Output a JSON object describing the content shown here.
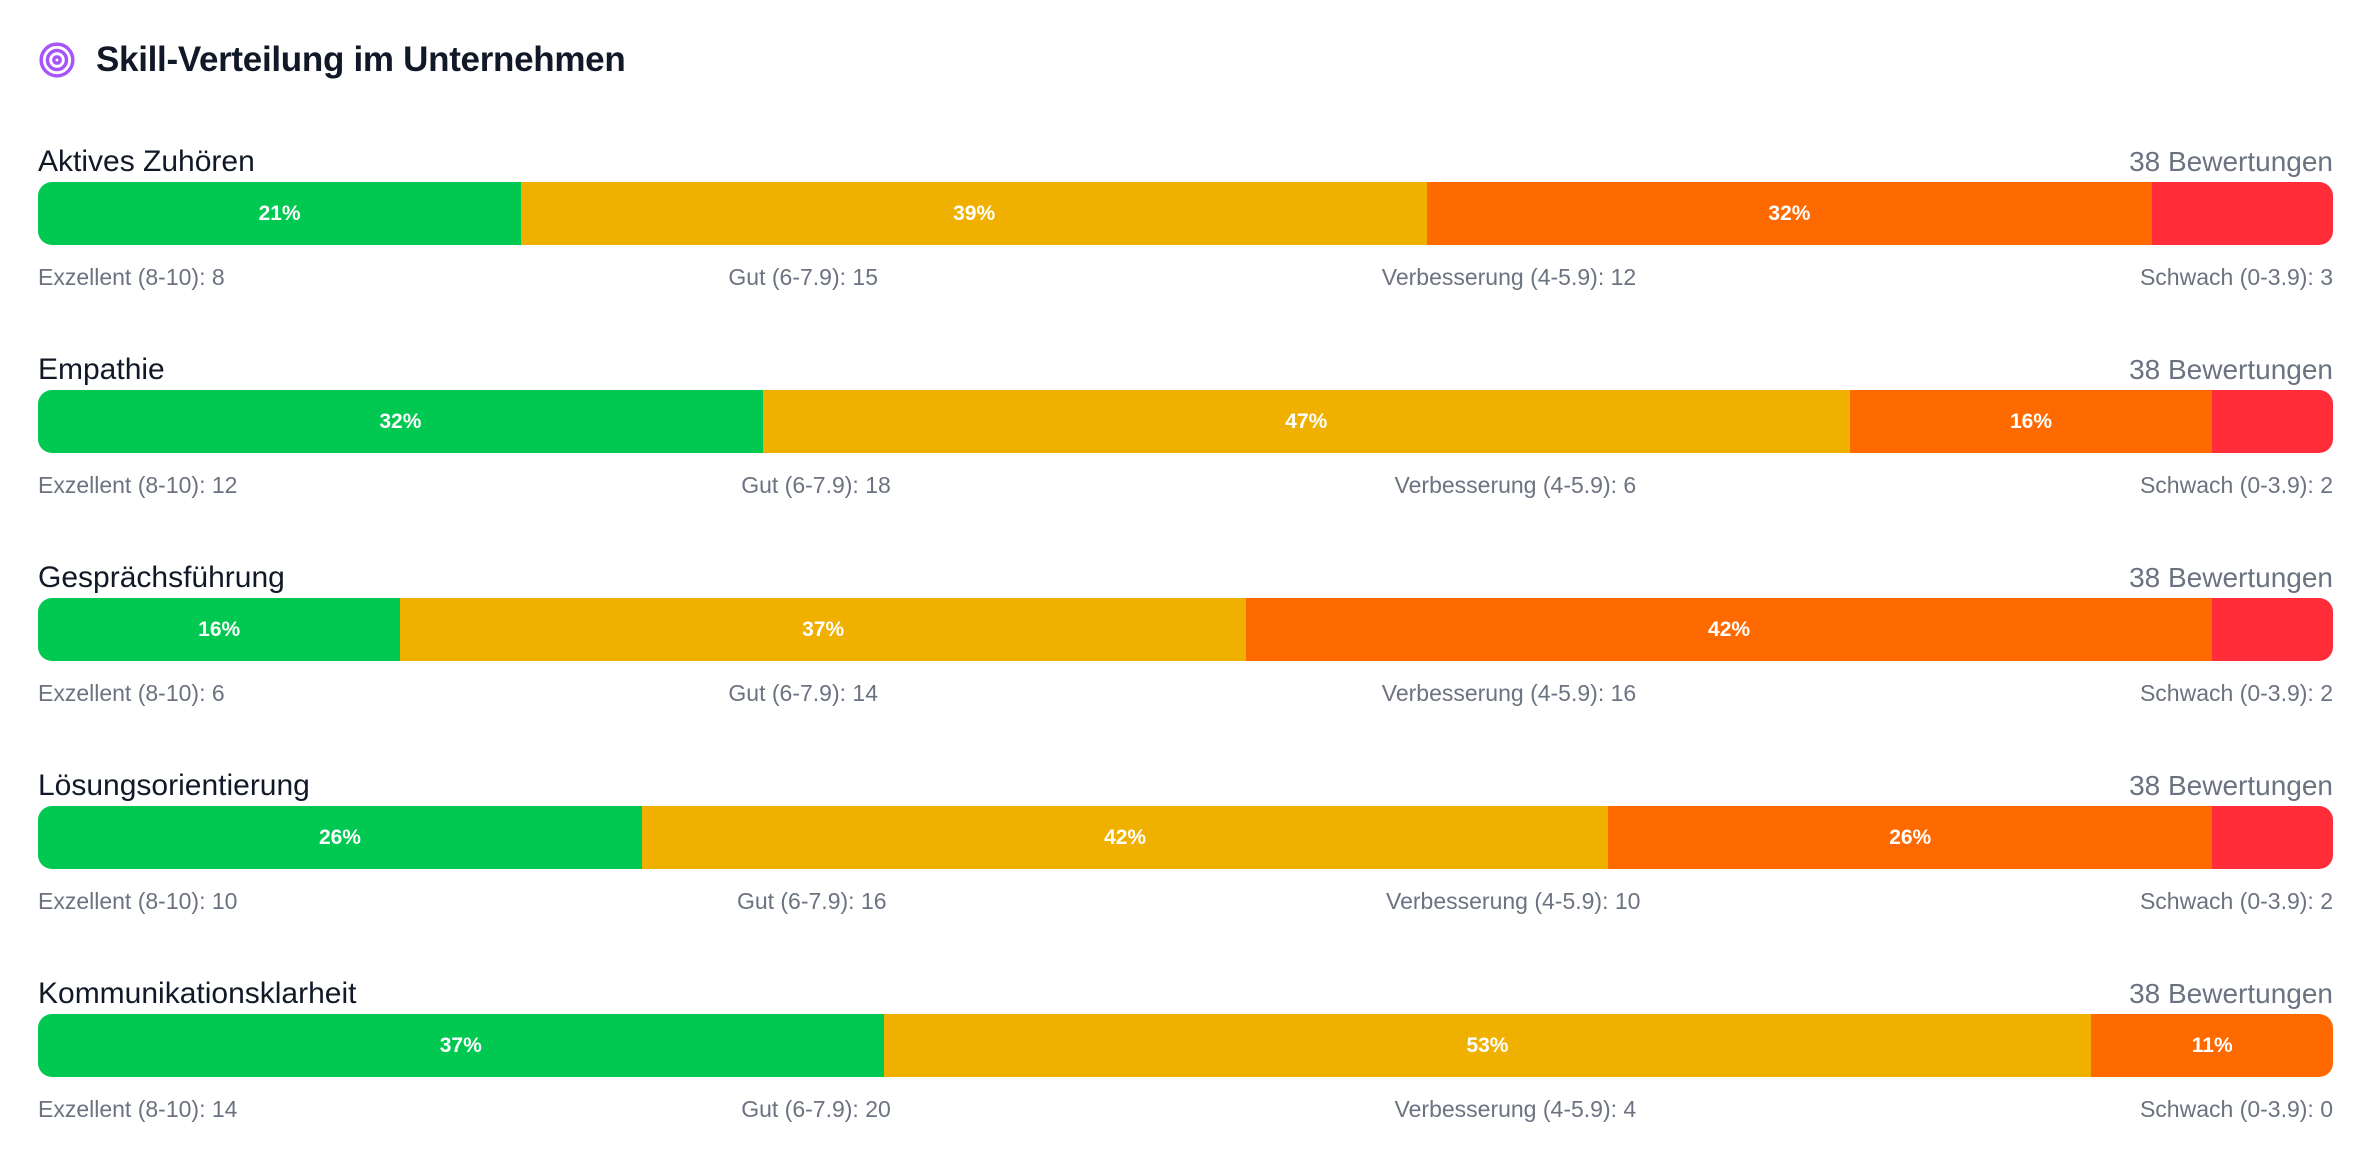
{
  "header": {
    "title": "Skill-Verteilung im Unternehmen",
    "icon": "target-icon",
    "icon_color": "#a855f7"
  },
  "chart_data": {
    "type": "bar",
    "stacked": true,
    "orientation": "horizontal",
    "categories": [
      "Exzellent (8-10)",
      "Gut (6-7.9)",
      "Verbesserung (4-5.9)",
      "Schwach (0-3.9)"
    ],
    "colors": [
      "#00c851",
      "#f0b000",
      "#ff6a00",
      "#ff2d3a"
    ],
    "rows": [
      {
        "skill": "Aktives Zuhören",
        "count_label": "38 Bewertungen",
        "values": [
          8,
          15,
          12,
          3
        ],
        "percent_labels": [
          "21%",
          "39%",
          "32%",
          ""
        ]
      },
      {
        "skill": "Empathie",
        "count_label": "38 Bewertungen",
        "values": [
          12,
          18,
          6,
          2
        ],
        "percent_labels": [
          "32%",
          "47%",
          "16%",
          ""
        ]
      },
      {
        "skill": "Gesprächsführung",
        "count_label": "38 Bewertungen",
        "values": [
          6,
          14,
          16,
          2
        ],
        "percent_labels": [
          "16%",
          "37%",
          "42%",
          ""
        ]
      },
      {
        "skill": "Lösungsorientierung",
        "count_label": "38 Bewertungen",
        "values": [
          10,
          16,
          10,
          2
        ],
        "percent_labels": [
          "26%",
          "42%",
          "26%",
          ""
        ]
      },
      {
        "skill": "Kommunikationsklarheit",
        "count_label": "38 Bewertungen",
        "values": [
          14,
          20,
          4,
          0
        ],
        "percent_labels": [
          "37%",
          "53%",
          "11%",
          ""
        ]
      }
    ]
  }
}
